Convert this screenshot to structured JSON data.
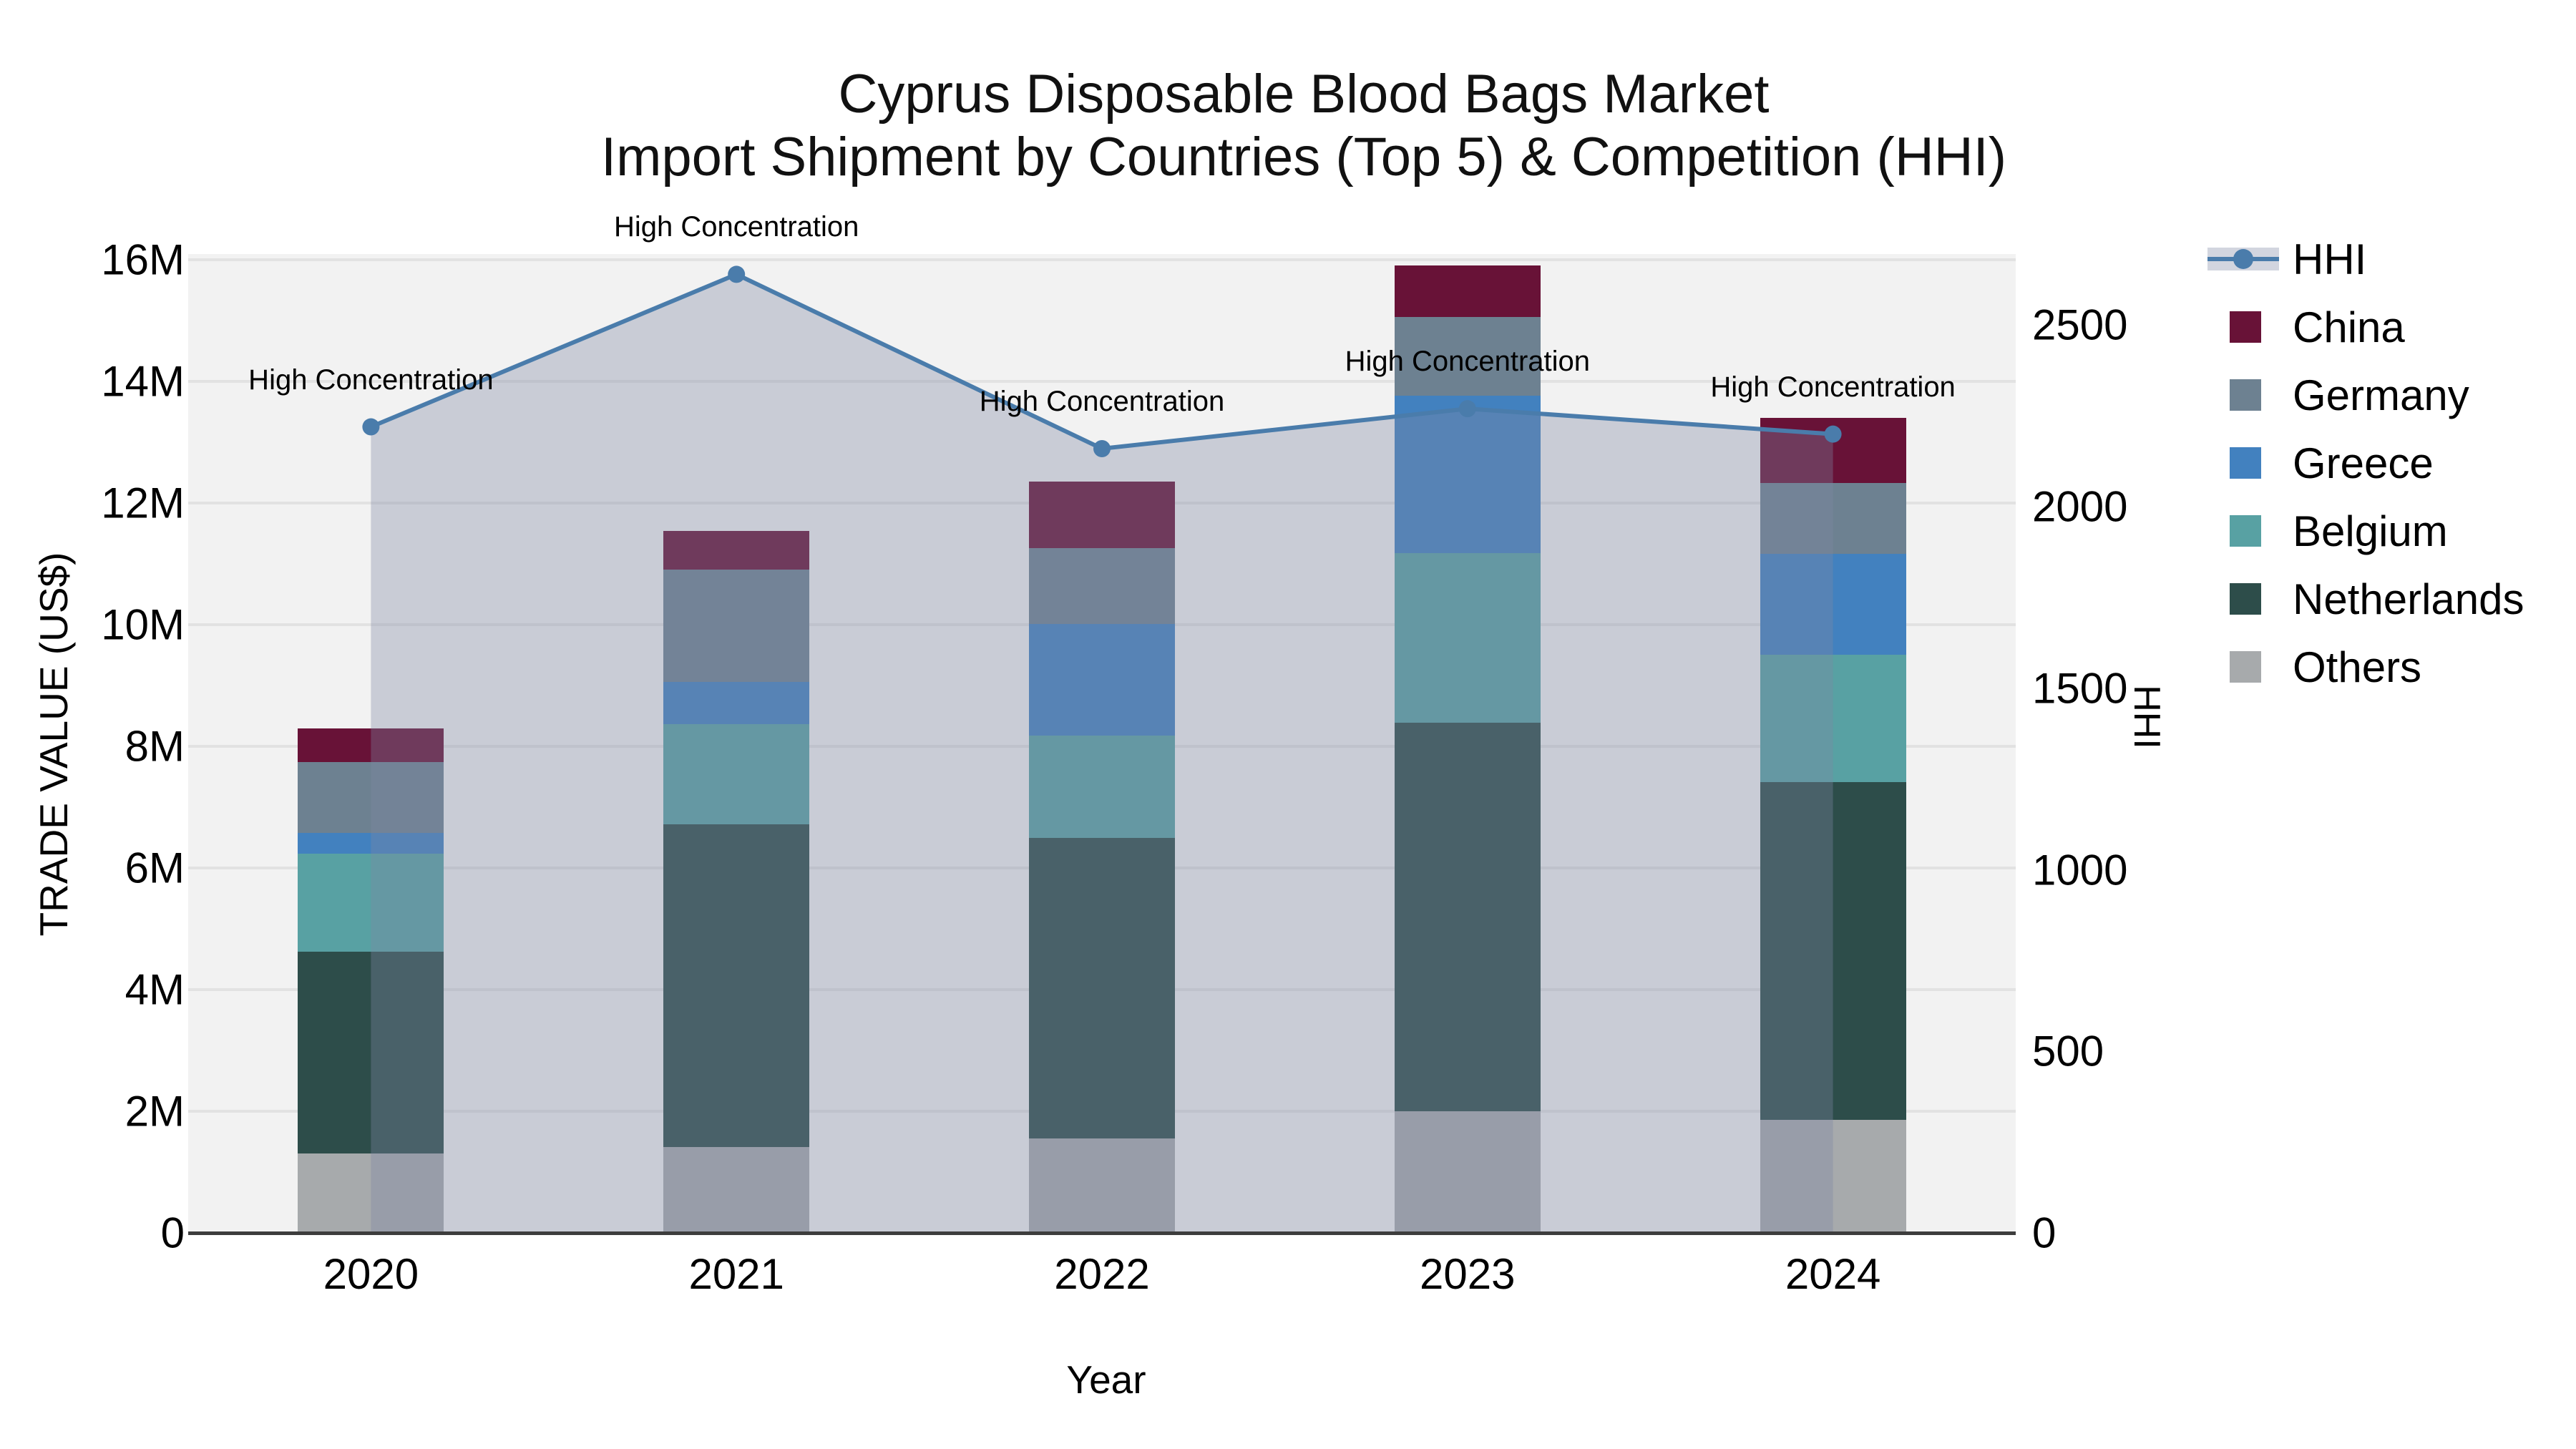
{
  "title": {
    "line1": "Cyprus Disposable Blood Bags Market",
    "line2": "Import Shipment by Countries (Top 5) & Competition (HHI)"
  },
  "axes": {
    "x": {
      "title": "Year",
      "categories": [
        "2020",
        "2021",
        "2022",
        "2023",
        "2024"
      ]
    },
    "y_left": {
      "title": "TRADE VALUE (US$)",
      "tick_labels": [
        "0",
        "2M",
        "4M",
        "6M",
        "8M",
        "10M",
        "12M",
        "14M",
        "16M"
      ]
    },
    "y_right": {
      "title": "HHI",
      "tick_labels": [
        "0",
        "500",
        "1000",
        "1500",
        "2000",
        "2500"
      ]
    }
  },
  "legend": {
    "items": [
      {
        "label": "HHI",
        "type": "line"
      },
      {
        "label": "China",
        "type": "swatch",
        "color": "#681237"
      },
      {
        "label": "Germany",
        "type": "swatch",
        "color": "#6d8191"
      },
      {
        "label": "Greece",
        "type": "swatch",
        "color": "#4281bf"
      },
      {
        "label": "Belgium",
        "type": "swatch",
        "color": "#58a1a3"
      },
      {
        "label": "Netherlands",
        "type": "swatch",
        "color": "#2d4d4a"
      },
      {
        "label": "Others",
        "type": "swatch",
        "color": "#a7aaac"
      }
    ]
  },
  "colors": {
    "plot_background": "#f2f2f2",
    "gridline": "#e2e2e2",
    "axis_line": "#3d3d3d",
    "hhi_line": "#4a7cab",
    "hhi_area_fill": "rgba(127,135,163,0.35)"
  },
  "chart_data": {
    "type": "bar",
    "subtype": "stacked-bars-with-line-overlay",
    "categories": [
      "2020",
      "2021",
      "2022",
      "2023",
      "2024"
    ],
    "stack_order_bottom_to_top": [
      "Others",
      "Netherlands",
      "Belgium",
      "Greece",
      "Germany",
      "China"
    ],
    "series": [
      {
        "name": "Others",
        "color": "#a7aaac",
        "values": [
          1300000,
          1410000,
          1550000,
          2000000,
          1860000
        ]
      },
      {
        "name": "Netherlands",
        "color": "#2d4d4a",
        "values": [
          3320000,
          5310000,
          4940000,
          6390000,
          5550000
        ]
      },
      {
        "name": "Belgium",
        "color": "#58a1a3",
        "values": [
          1620000,
          1650000,
          1690000,
          2790000,
          2100000
        ]
      },
      {
        "name": "Greece",
        "color": "#4281bf",
        "values": [
          340000,
          690000,
          1830000,
          2580000,
          1650000
        ]
      },
      {
        "name": "Germany",
        "color": "#6d8191",
        "values": [
          1160000,
          1840000,
          1250000,
          1300000,
          1170000
        ]
      },
      {
        "name": "China",
        "color": "#681237",
        "values": [
          550000,
          640000,
          1090000,
          850000,
          1070000
        ]
      }
    ],
    "bar_totals": [
      8290000,
      11540000,
      12350000,
      15910000,
      13400000
    ],
    "line_series": {
      "name": "HHI",
      "color": "#4a7cab",
      "area_fill": "rgba(127,135,163,0.35)",
      "values": [
        2220,
        2640,
        2160,
        2270,
        2200
      ],
      "point_annotation": "High Concentration"
    },
    "title": "Cyprus Disposable Blood Bags Market — Import Shipment by Countries (Top 5) & Competition (HHI)",
    "xlabel": "Year",
    "ylabel_left": "TRADE VALUE (US$)",
    "ylabel_right": "HHI",
    "ylim_left": [
      0,
      16094000
    ],
    "ylim_right": [
      0,
      2696
    ],
    "grid": true,
    "legend_position": "right"
  }
}
